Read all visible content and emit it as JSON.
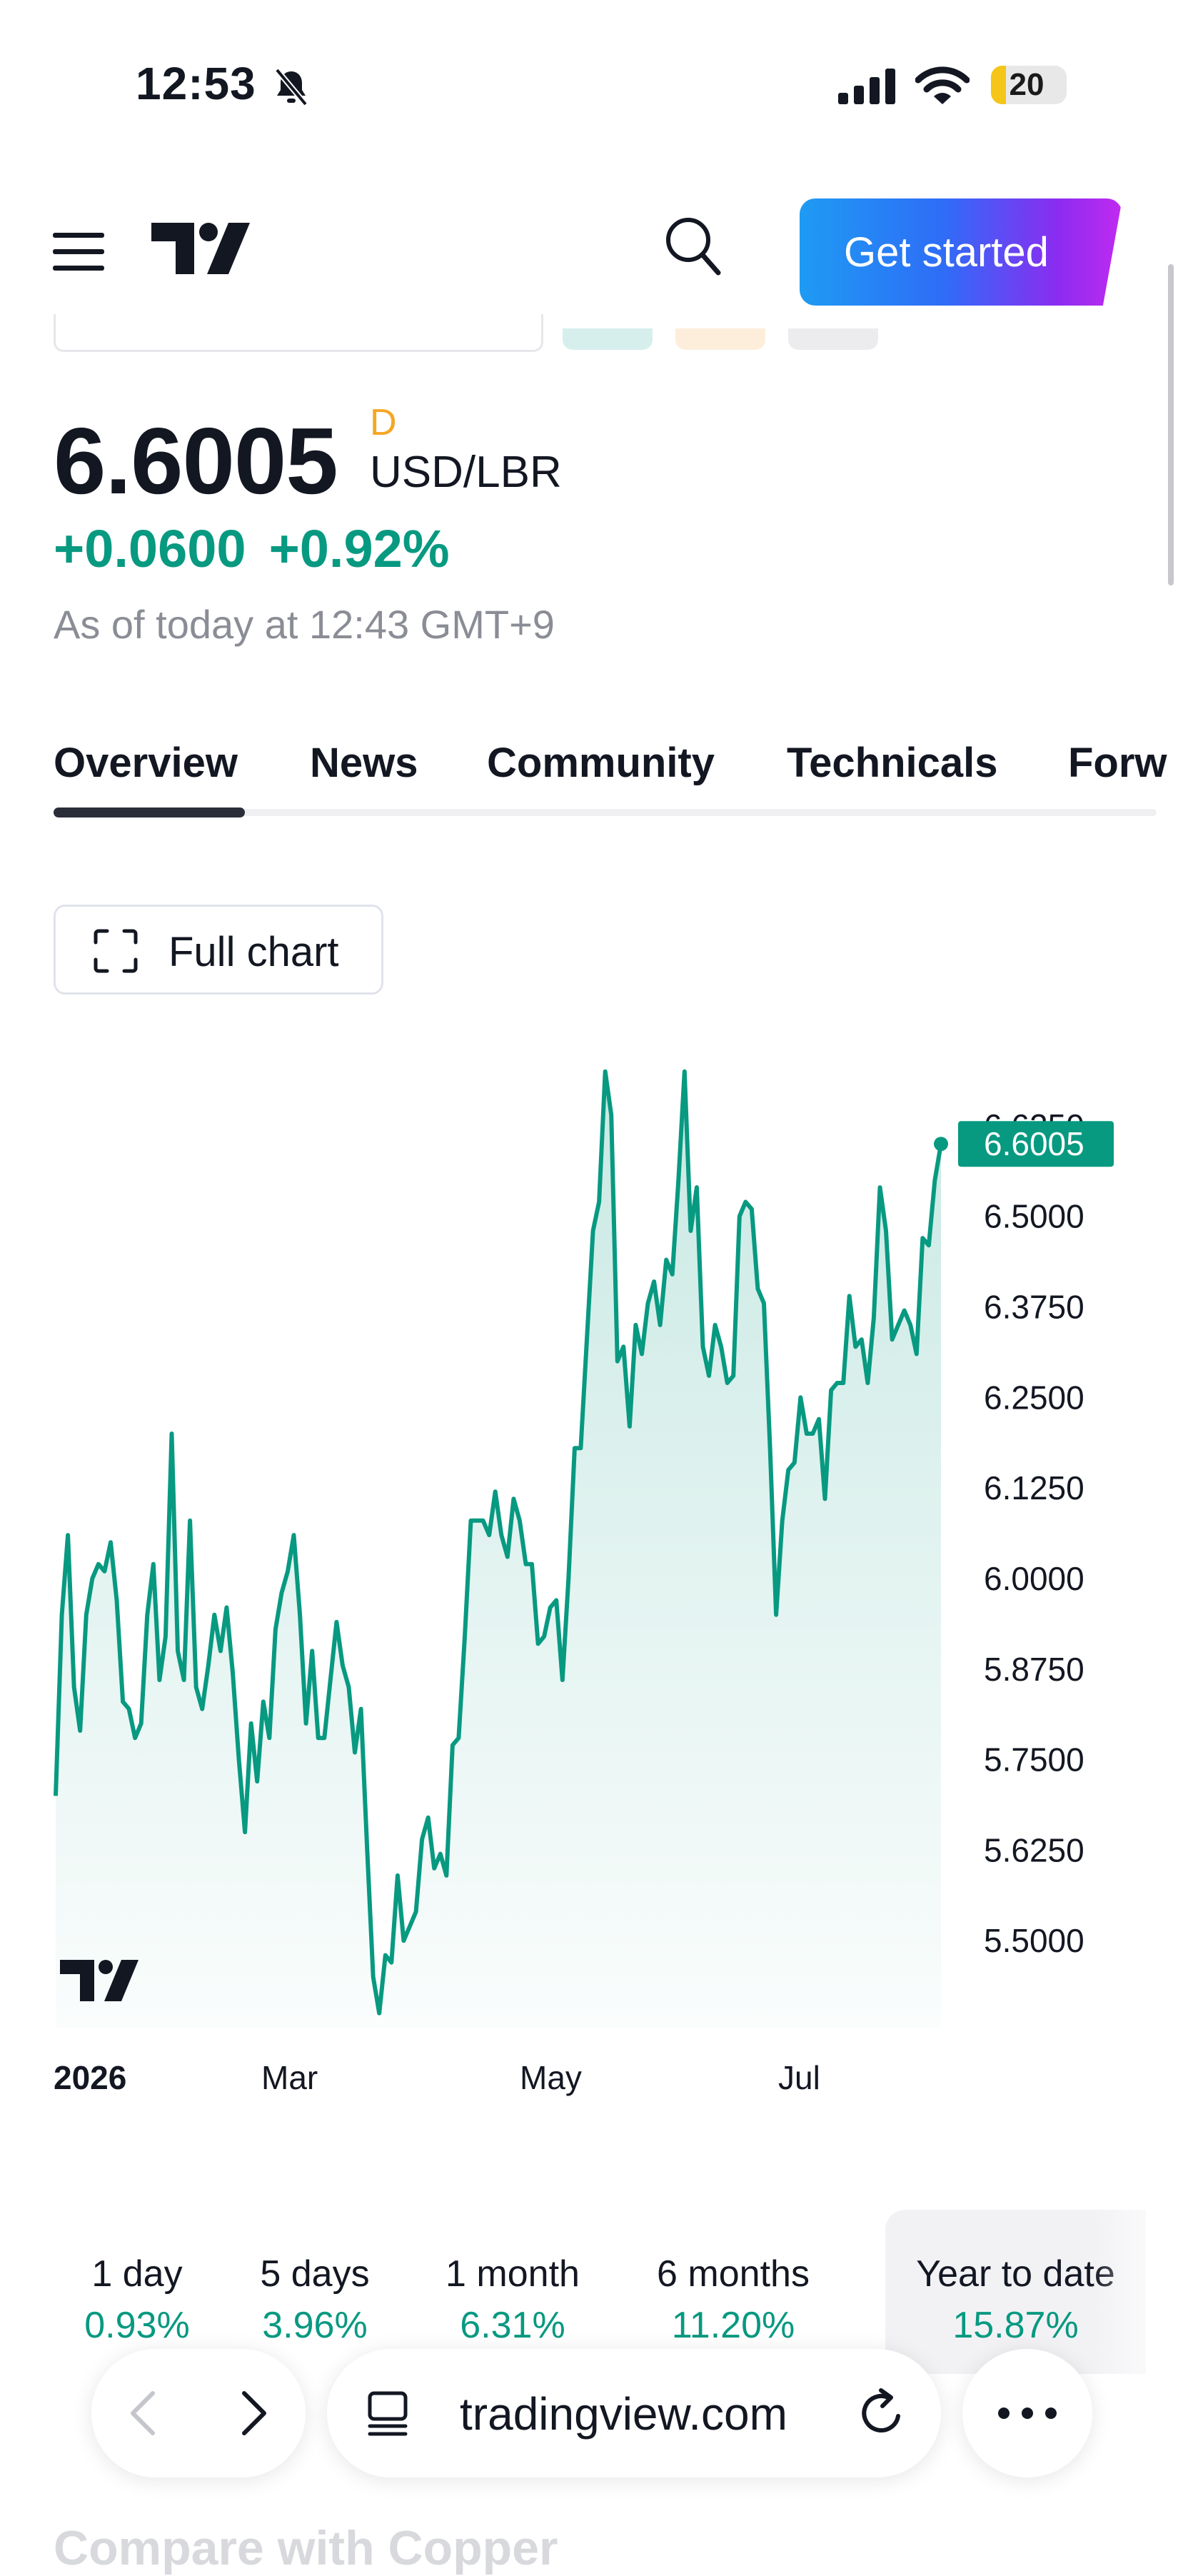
{
  "status_bar": {
    "time": "12:53",
    "battery": "20",
    "battery_level": 0.2
  },
  "header": {
    "cta_label": "Get started"
  },
  "quote": {
    "price": "6.6005",
    "flag": "D",
    "pair": "USD/LBR",
    "change_abs": "+0.0600",
    "change_pct": "+0.92%",
    "as_of": "As of today at 12:43 GMT+9"
  },
  "tabs": [
    {
      "label": "Overview",
      "active": true
    },
    {
      "label": "News"
    },
    {
      "label": "Community"
    },
    {
      "label": "Technicals"
    },
    {
      "label": "Forw"
    }
  ],
  "full_chart_label": "Full chart",
  "chart_data": {
    "type": "area",
    "color": "#089981",
    "y_ticks": [
      "6.6250",
      "6.5000",
      "6.3750",
      "6.2500",
      "6.1250",
      "6.0000",
      "5.8750",
      "5.7500",
      "5.6250",
      "5.5000"
    ],
    "x_labels": [
      "2026",
      "Mar",
      "May",
      "Jul"
    ],
    "ylim": [
      5.38,
      6.75
    ],
    "last_value": "6.6005",
    "values": [
      5.7,
      5.95,
      6.06,
      5.85,
      5.79,
      5.95,
      6.0,
      6.02,
      6.01,
      6.05,
      5.97,
      5.83,
      5.82,
      5.78,
      5.8,
      5.95,
      6.02,
      5.86,
      5.92,
      6.2,
      5.9,
      5.86,
      6.08,
      5.85,
      5.82,
      5.88,
      5.95,
      5.9,
      5.96,
      5.87,
      5.75,
      5.65,
      5.8,
      5.72,
      5.83,
      5.78,
      5.93,
      5.98,
      6.01,
      6.06,
      5.95,
      5.8,
      5.9,
      5.78,
      5.78,
      5.86,
      5.94,
      5.88,
      5.85,
      5.76,
      5.82,
      5.63,
      5.45,
      5.4,
      5.48,
      5.47,
      5.59,
      5.5,
      5.52,
      5.54,
      5.64,
      5.67,
      5.6,
      5.62,
      5.59,
      5.77,
      5.78,
      5.92,
      6.08,
      6.08,
      6.08,
      6.06,
      6.12,
      6.06,
      6.03,
      6.11,
      6.08,
      6.02,
      6.02,
      5.91,
      5.92,
      5.96,
      5.97,
      5.86,
      6.0,
      6.18,
      6.18,
      6.33,
      6.48,
      6.52,
      6.7,
      6.64,
      6.3,
      6.32,
      6.21,
      6.35,
      6.31,
      6.38,
      6.41,
      6.35,
      6.44,
      6.42,
      6.55,
      6.7,
      6.48,
      6.54,
      6.32,
      6.28,
      6.35,
      6.32,
      6.27,
      6.28,
      6.5,
      6.52,
      6.51,
      6.4,
      6.38,
      6.18,
      5.95,
      6.08,
      6.15,
      6.16,
      6.25,
      6.2,
      6.2,
      6.22,
      6.11,
      6.26,
      6.27,
      6.27,
      6.39,
      6.32,
      6.33,
      6.27,
      6.36,
      6.54,
      6.48,
      6.33,
      6.35,
      6.37,
      6.35,
      6.31,
      6.47,
      6.46,
      6.55,
      6.6
    ]
  },
  "periods": [
    {
      "label": "1 day",
      "value": "0.93%"
    },
    {
      "label": "5 days",
      "value": "3.96%"
    },
    {
      "label": "1 month",
      "value": "6.31%"
    },
    {
      "label": "6 months",
      "value": "11.20%"
    },
    {
      "label": "Year to date",
      "value": "15.87%",
      "selected": true
    }
  ],
  "browser": {
    "url": "tradingview.com"
  },
  "compare_text": "Compare with Copper"
}
